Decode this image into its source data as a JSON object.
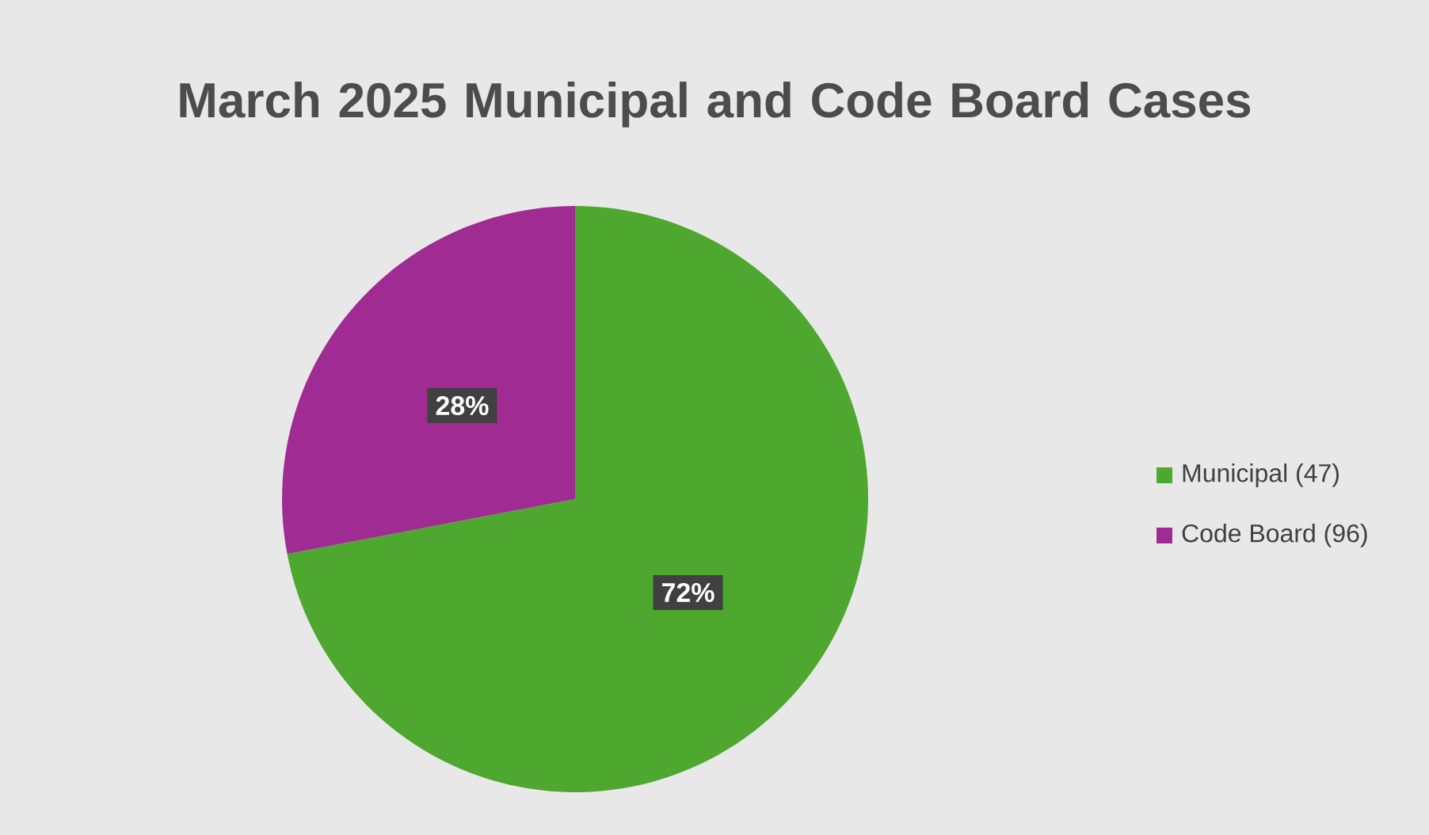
{
  "chart_data": {
    "type": "pie",
    "title": "March 2025 Municipal and Code Board Cases",
    "categories": [
      "Municipal (47)",
      "Code Board (96)"
    ],
    "values": [
      72,
      28
    ],
    "colors": [
      "#4ea72e",
      "#a02b93"
    ],
    "value_labels": [
      "72%",
      "28%"
    ],
    "legend": "right"
  }
}
